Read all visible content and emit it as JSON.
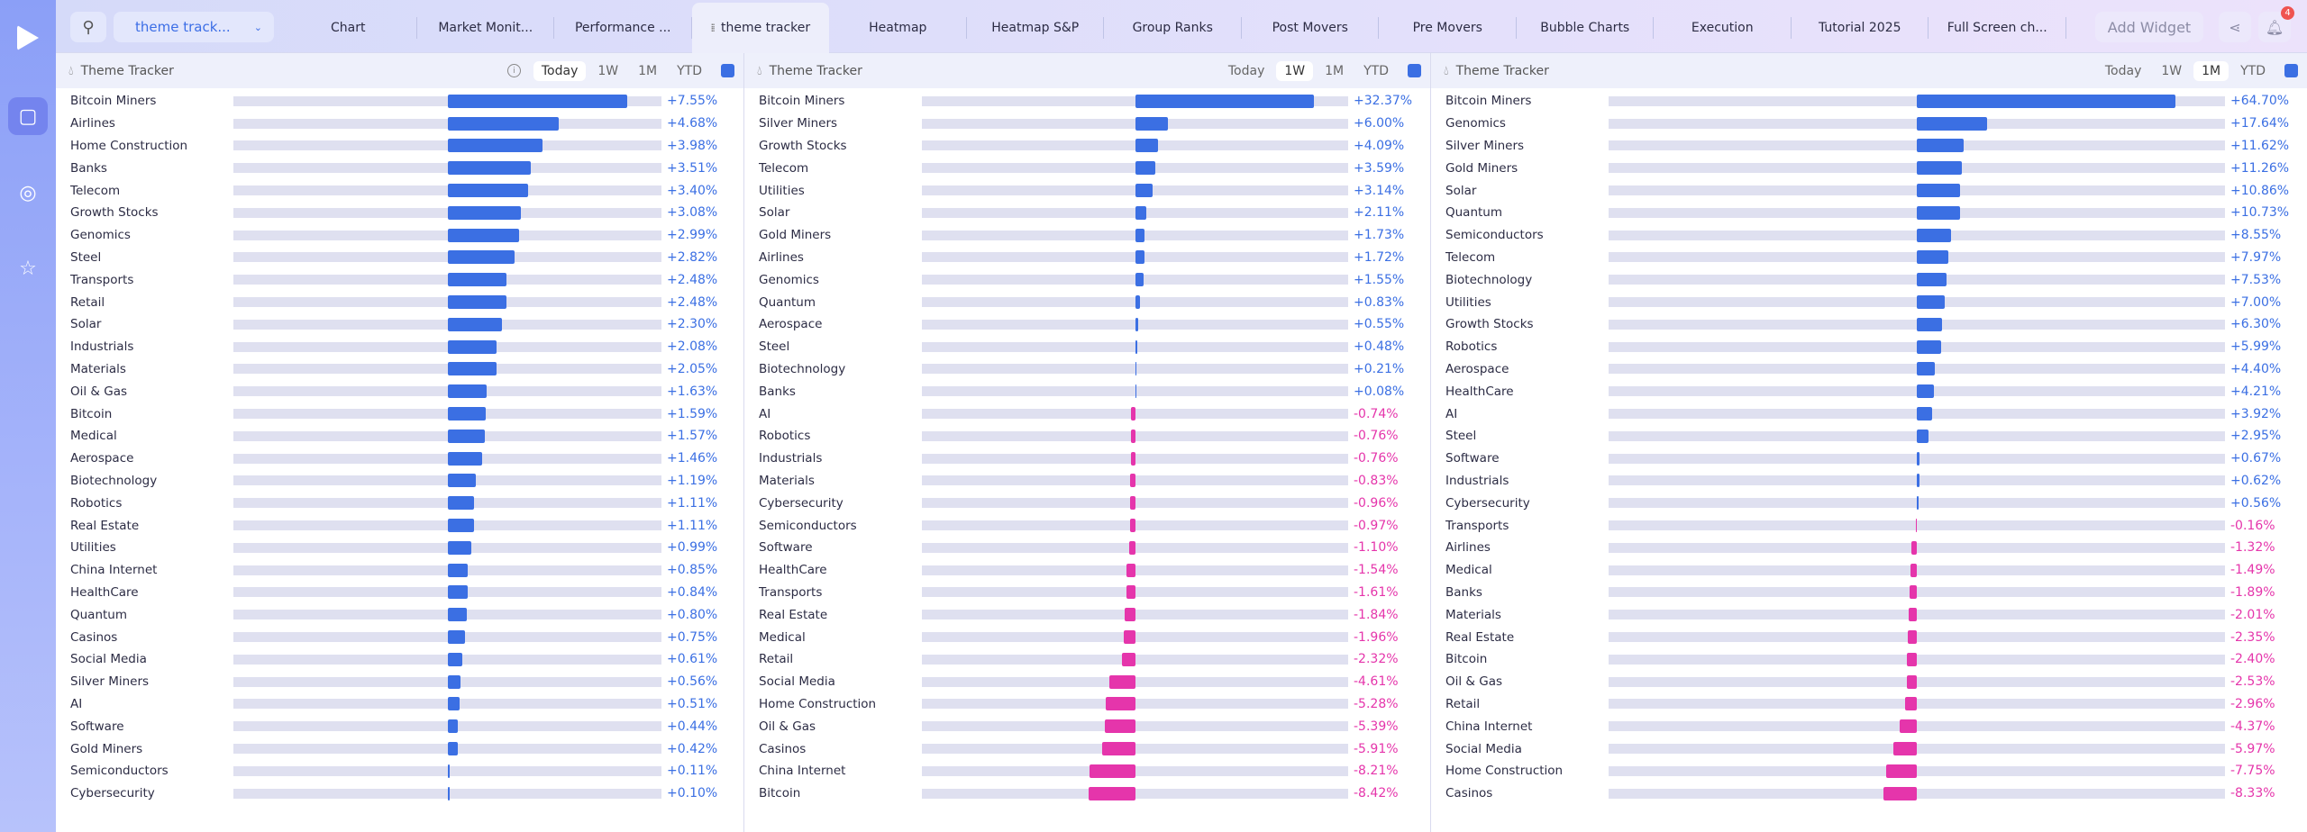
{
  "colors": {
    "positive": "#3b6fe3",
    "negative": "#e535ab"
  },
  "topbar": {
    "workspace": "theme track...",
    "tabs": [
      "Chart",
      "Market Monit...",
      "Performance ...",
      "theme tracker",
      "Heatmap",
      "Heatmap S&P",
      "Group Ranks",
      "Post Movers",
      "Pre Movers",
      "Bubble Charts",
      "Execution",
      "Tutorial 2025",
      "Full Screen ch..."
    ],
    "active_tab": 3,
    "add_widget": "Add Widget",
    "notifications": "4"
  },
  "timeframes": [
    "Today",
    "1W",
    "1M",
    "YTD"
  ],
  "panels": [
    {
      "title": "Theme Tracker",
      "active": "Today",
      "rows": [
        [
          "Bitcoin Miners",
          7.55
        ],
        [
          "Airlines",
          4.68
        ],
        [
          "Home Construction",
          3.98
        ],
        [
          "Banks",
          3.51
        ],
        [
          "Telecom",
          3.4
        ],
        [
          "Growth Stocks",
          3.08
        ],
        [
          "Genomics",
          2.99
        ],
        [
          "Steel",
          2.82
        ],
        [
          "Transports",
          2.48
        ],
        [
          "Retail",
          2.48
        ],
        [
          "Solar",
          2.3
        ],
        [
          "Industrials",
          2.08
        ],
        [
          "Materials",
          2.05
        ],
        [
          "Oil & Gas",
          1.63
        ],
        [
          "Bitcoin",
          1.59
        ],
        [
          "Medical",
          1.57
        ],
        [
          "Aerospace",
          1.46
        ],
        [
          "Biotechnology",
          1.19
        ],
        [
          "Robotics",
          1.11
        ],
        [
          "Real Estate",
          1.11
        ],
        [
          "Utilities",
          0.99
        ],
        [
          "China Internet",
          0.85
        ],
        [
          "HealthCare",
          0.84
        ],
        [
          "Quantum",
          0.8
        ],
        [
          "Casinos",
          0.75
        ],
        [
          "Social Media",
          0.61
        ],
        [
          "Silver Miners",
          0.56
        ],
        [
          "AI",
          0.51
        ],
        [
          "Software",
          0.44
        ],
        [
          "Gold Miners",
          0.42
        ],
        [
          "Semiconductors",
          0.11
        ],
        [
          "Cybersecurity",
          0.1
        ]
      ]
    },
    {
      "title": "Theme Tracker",
      "active": "1W",
      "rows": [
        [
          "Bitcoin Miners",
          32.37
        ],
        [
          "Silver Miners",
          6.0
        ],
        [
          "Growth Stocks",
          4.09
        ],
        [
          "Telecom",
          3.59
        ],
        [
          "Utilities",
          3.14
        ],
        [
          "Solar",
          2.11
        ],
        [
          "Gold Miners",
          1.73
        ],
        [
          "Airlines",
          1.72
        ],
        [
          "Genomics",
          1.55
        ],
        [
          "Quantum",
          0.83
        ],
        [
          "Aerospace",
          0.55
        ],
        [
          "Steel",
          0.48
        ],
        [
          "Biotechnology",
          0.21
        ],
        [
          "Banks",
          0.08
        ],
        [
          "AI",
          -0.74
        ],
        [
          "Robotics",
          -0.76
        ],
        [
          "Industrials",
          -0.76
        ],
        [
          "Materials",
          -0.83
        ],
        [
          "Cybersecurity",
          -0.96
        ],
        [
          "Semiconductors",
          -0.97
        ],
        [
          "Software",
          -1.1
        ],
        [
          "HealthCare",
          -1.54
        ],
        [
          "Transports",
          -1.61
        ],
        [
          "Real Estate",
          -1.84
        ],
        [
          "Medical",
          -1.96
        ],
        [
          "Retail",
          -2.32
        ],
        [
          "Social Media",
          -4.61
        ],
        [
          "Home Construction",
          -5.28
        ],
        [
          "Oil & Gas",
          -5.39
        ],
        [
          "Casinos",
          -5.91
        ],
        [
          "China Internet",
          -8.21
        ],
        [
          "Bitcoin",
          -8.42
        ]
      ]
    },
    {
      "title": "Theme Tracker",
      "active": "1M",
      "rows": [
        [
          "Bitcoin Miners",
          64.7
        ],
        [
          "Genomics",
          17.64
        ],
        [
          "Silver Miners",
          11.62
        ],
        [
          "Gold Miners",
          11.26
        ],
        [
          "Solar",
          10.86
        ],
        [
          "Quantum",
          10.73
        ],
        [
          "Semiconductors",
          8.55
        ],
        [
          "Telecom",
          7.97
        ],
        [
          "Biotechnology",
          7.53
        ],
        [
          "Utilities",
          7.0
        ],
        [
          "Growth Stocks",
          6.3
        ],
        [
          "Robotics",
          5.99
        ],
        [
          "Aerospace",
          4.4
        ],
        [
          "HealthCare",
          4.21
        ],
        [
          "AI",
          3.92
        ],
        [
          "Steel",
          2.95
        ],
        [
          "Software",
          0.67
        ],
        [
          "Industrials",
          0.62
        ],
        [
          "Cybersecurity",
          0.56
        ],
        [
          "Transports",
          -0.16
        ],
        [
          "Airlines",
          -1.32
        ],
        [
          "Medical",
          -1.49
        ],
        [
          "Banks",
          -1.89
        ],
        [
          "Materials",
          -2.01
        ],
        [
          "Real Estate",
          -2.35
        ],
        [
          "Bitcoin",
          -2.4
        ],
        [
          "Oil & Gas",
          -2.53
        ],
        [
          "Retail",
          -2.96
        ],
        [
          "China Internet",
          -4.37
        ],
        [
          "Social Media",
          -5.97
        ],
        [
          "Home Construction",
          -7.75
        ],
        [
          "Casinos",
          -8.33
        ]
      ]
    }
  ]
}
